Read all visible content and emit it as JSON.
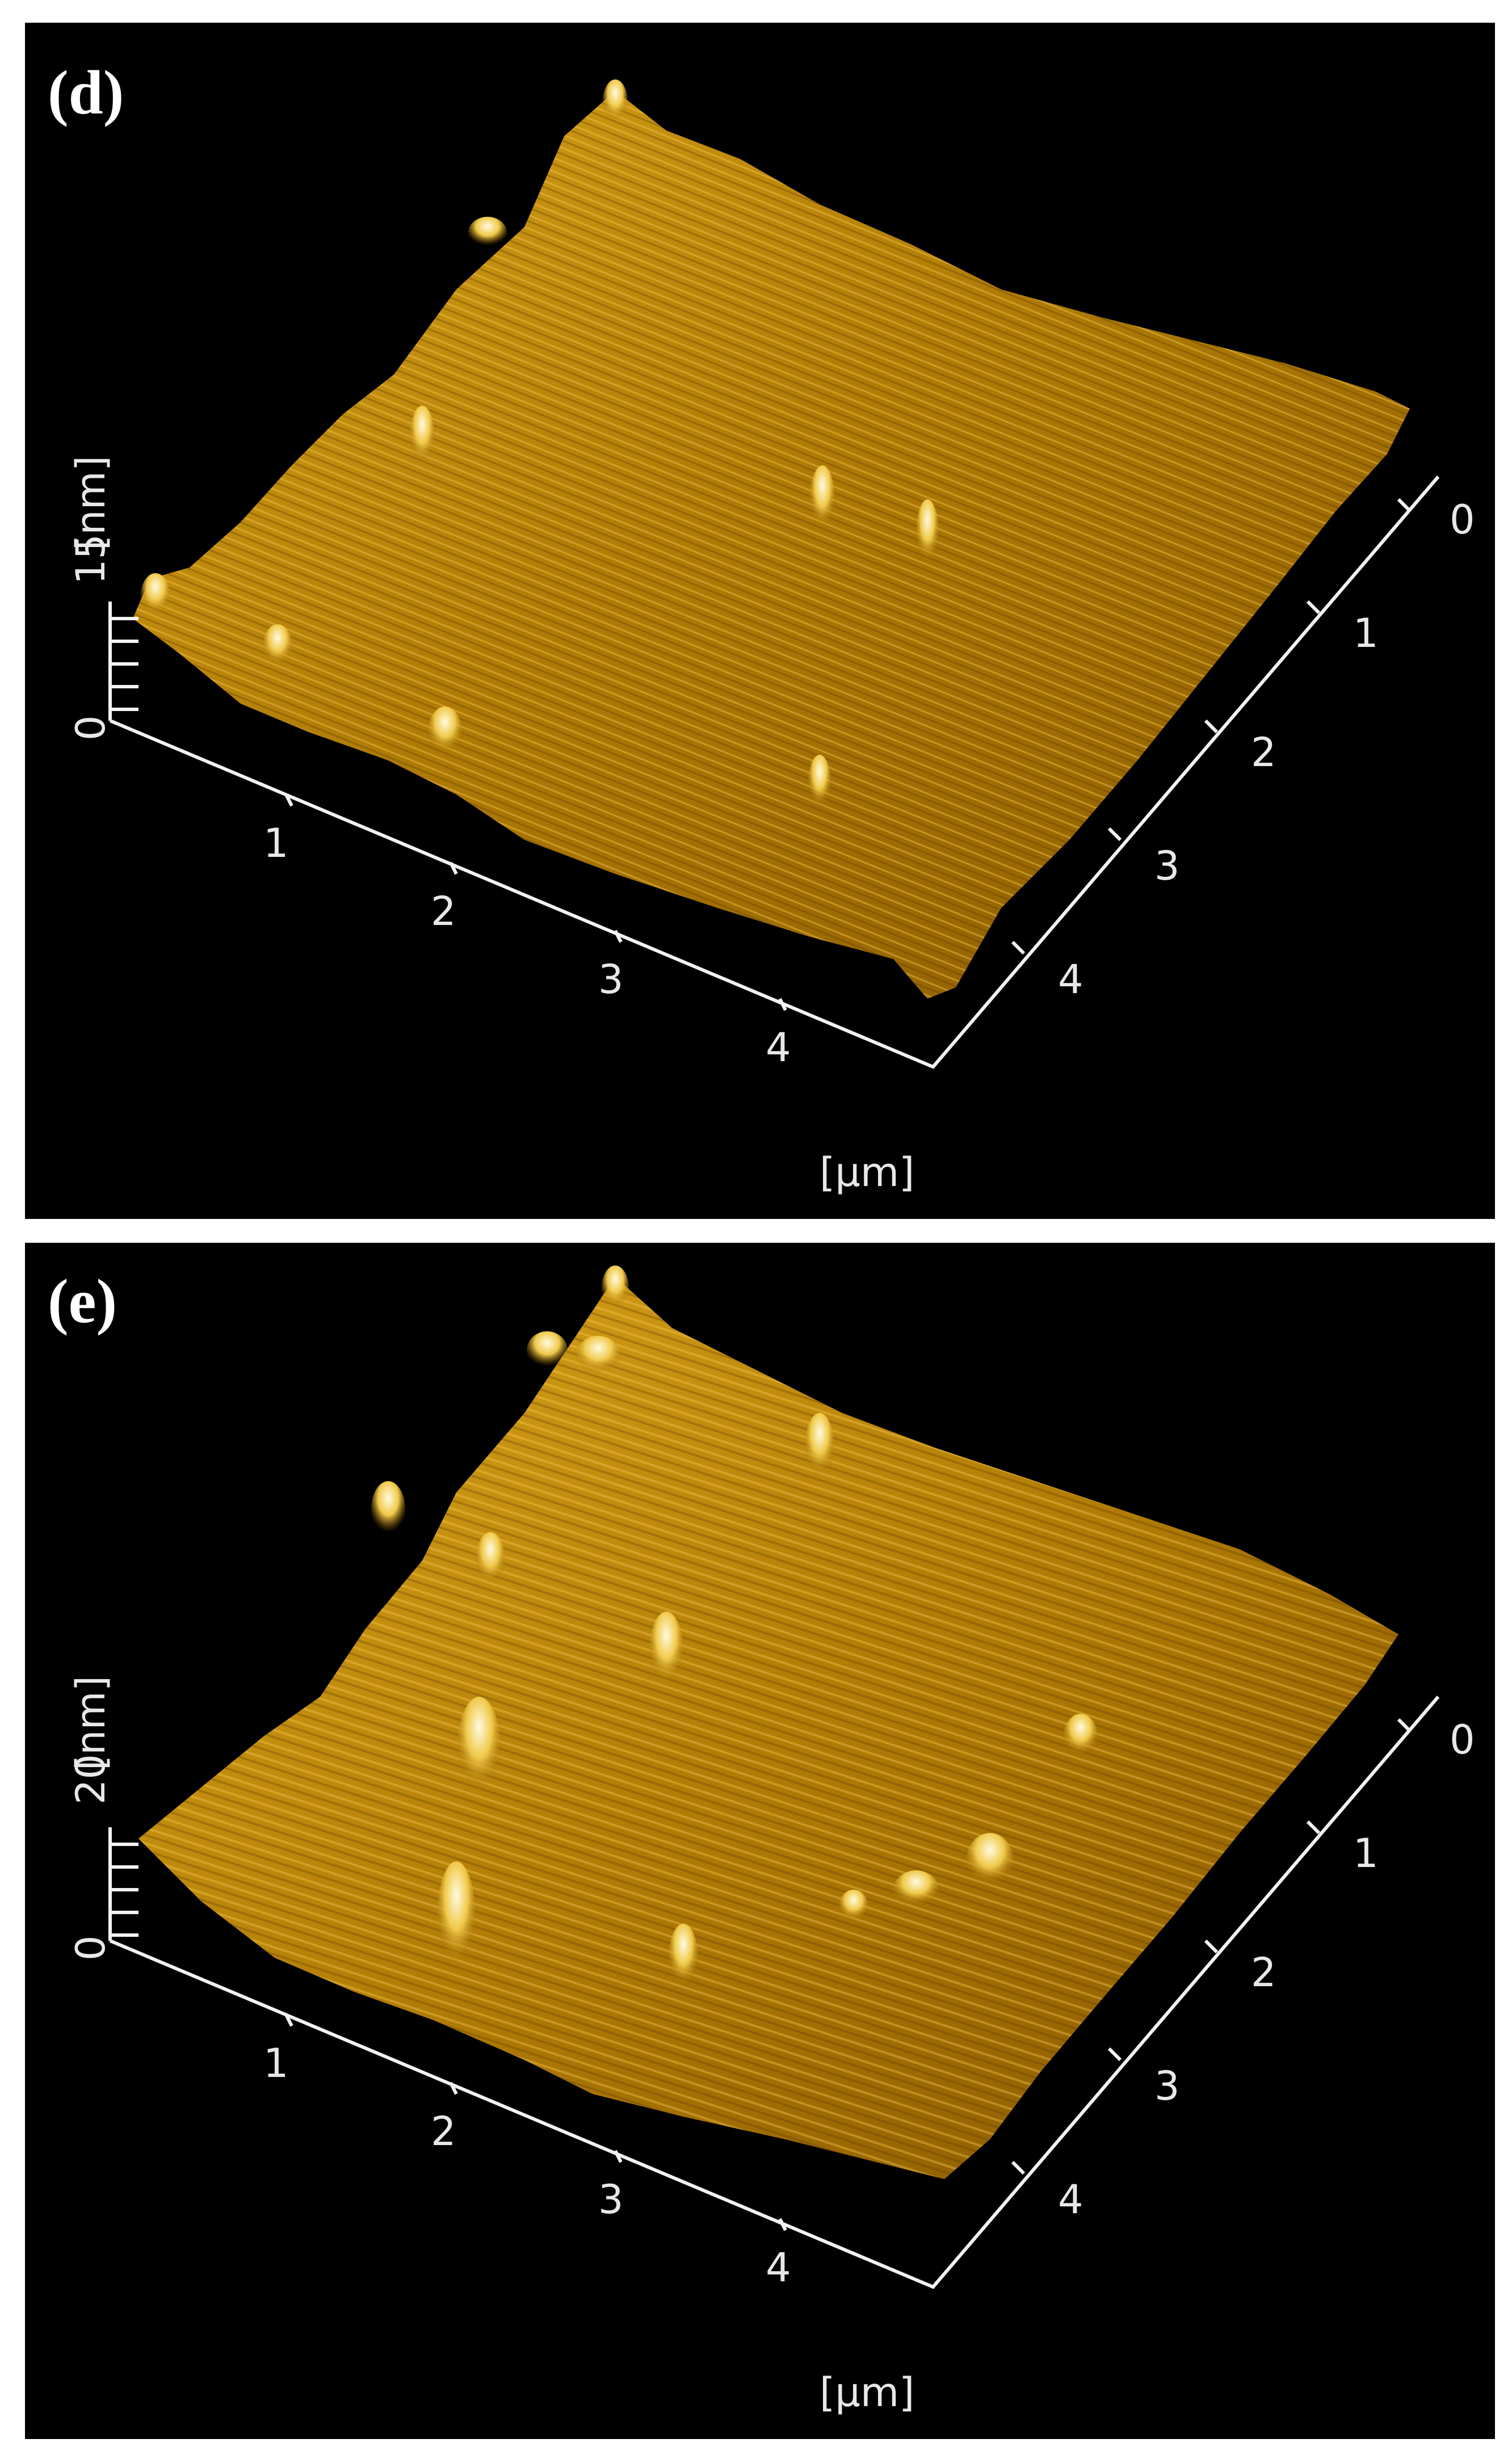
{
  "panels": [
    {
      "label": "(d)",
      "z_axis": {
        "unit_label": "[nm]",
        "max_label": "15",
        "min_label": "0"
      },
      "x_axis": {
        "ticks": [
          "1",
          "2",
          "3",
          "4"
        ]
      },
      "y_axis": {
        "ticks": [
          "0",
          "1",
          "2",
          "3",
          "4"
        ]
      },
      "bottom_unit": "[µm]"
    },
    {
      "label": "(e)",
      "z_axis": {
        "unit_label": "[nm]",
        "max_label": "20",
        "min_label": "0"
      },
      "x_axis": {
        "ticks": [
          "1",
          "2",
          "3",
          "4"
        ]
      },
      "y_axis": {
        "ticks": [
          "0",
          "1",
          "2",
          "3",
          "4"
        ]
      },
      "bottom_unit": "[µm]"
    }
  ],
  "colors": {
    "background": "#000000",
    "surface_dark": "#6b4300",
    "surface_mid": "#b98300",
    "surface_light": "#f0c94a",
    "peak": "#fff6c8",
    "axis": "#f2f2f2"
  }
}
